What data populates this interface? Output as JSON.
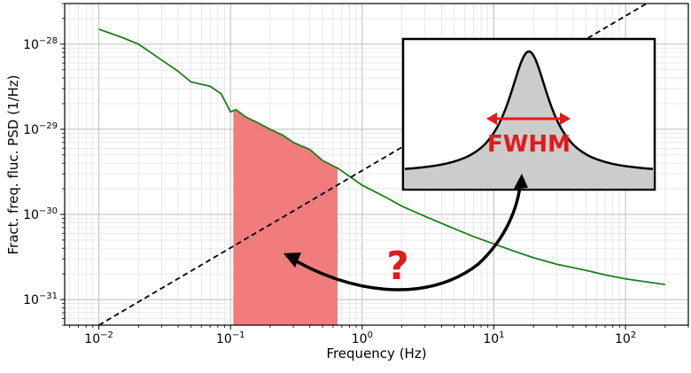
{
  "chart_data": {
    "type": "line",
    "xlabel": "Frequency (Hz)",
    "ylabel": "Fract. freq. fluc. PSD (1/Hz)",
    "xscale": "log",
    "yscale": "log",
    "xlim": [
      0.0055,
      300
    ],
    "ylim": [
      5e-32,
      3e-28
    ],
    "grid": true,
    "x_ticks": [
      {
        "value": 0.01,
        "base": "10",
        "exp": "−2"
      },
      {
        "value": 0.1,
        "base": "10",
        "exp": "−1"
      },
      {
        "value": 1,
        "base": "10",
        "exp": "0"
      },
      {
        "value": 10,
        "base": "10",
        "exp": "1"
      },
      {
        "value": 100,
        "base": "10",
        "exp": "2"
      }
    ],
    "y_ticks": [
      {
        "value": 1e-28,
        "base": "10",
        "exp": "−28"
      },
      {
        "value": 1e-29,
        "base": "10",
        "exp": "−29"
      },
      {
        "value": 1e-30,
        "base": "10",
        "exp": "−30"
      },
      {
        "value": 1e-31,
        "base": "10",
        "exp": "−31"
      }
    ],
    "series": [
      {
        "style": "solid",
        "color": "#1e7d1e",
        "x": [
          0.01,
          0.015,
          0.02,
          0.03,
          0.04,
          0.05,
          0.07,
          0.085,
          0.1,
          0.11,
          0.13,
          0.16,
          0.2,
          0.25,
          0.3,
          0.4,
          0.5,
          0.65,
          0.8,
          1,
          1.5,
          2,
          3,
          5,
          7,
          10,
          15,
          20,
          30,
          50,
          70,
          100,
          150,
          200
        ],
        "y": [
          1.5e-28,
          1.2e-28,
          1e-28,
          6.5e-29,
          4.8e-29,
          3.6e-29,
          3.2e-29,
          2.6e-29,
          1.6e-29,
          1.7e-29,
          1.4e-29,
          1.2e-29,
          1e-29,
          8.5e-30,
          7e-30,
          5.8e-30,
          4.3e-30,
          3.5e-30,
          2.8e-30,
          2.2e-30,
          1.6e-30,
          1.25e-30,
          9.5e-31,
          6.8e-31,
          5.5e-31,
          4.5e-31,
          3.6e-31,
          3.1e-31,
          2.6e-31,
          2.2e-31,
          1.95e-31,
          1.75e-31,
          1.6e-31,
          1.5e-31
        ]
      },
      {
        "style": "dashed",
        "color": "#000000",
        "x": [
          0.01,
          150
        ],
        "y": [
          5e-32,
          3.1e-28
        ]
      }
    ],
    "shaded_region": {
      "x_start": 0.105,
      "x_end": 0.65,
      "color": "#f07575"
    },
    "inset": {
      "label": "FWHM",
      "label_color": "#e01b1b",
      "fill": "#cccccc"
    },
    "annotation": {
      "text": "?",
      "color": "#e01b1b"
    }
  }
}
